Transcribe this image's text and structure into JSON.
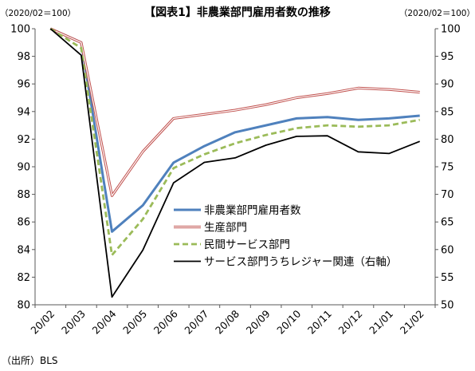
{
  "chart_data": {
    "type": "line",
    "title": "【図表1】非農業部門雇用者数の推移",
    "left_axis_unit": "（2020/02＝100）",
    "right_axis_unit": "（2020/02＝100）",
    "source": "（出所）BLS",
    "categories": [
      "20/02",
      "20/03",
      "20/04",
      "20/05",
      "20/06",
      "20/07",
      "20/08",
      "20/09",
      "20/10",
      "20/11",
      "20/12",
      "21/01",
      "21/02"
    ],
    "left_axis": {
      "min": 80,
      "max": 100,
      "ticks": [
        "80",
        "82",
        "84",
        "86",
        "88",
        "90",
        "92",
        "94",
        "96",
        "98",
        "100"
      ]
    },
    "right_axis": {
      "min": 50,
      "max": 100,
      "ticks": [
        "50",
        "55",
        "60",
        "65",
        "70",
        "75",
        "80",
        "85",
        "90",
        "95",
        "100"
      ]
    },
    "grid": false,
    "legend_position": "center-right",
    "series": [
      {
        "name": "非農業部門雇用者数",
        "axis": "left",
        "color": "#4f81bd",
        "style": "solid-thick",
        "values": [
          100,
          99.0,
          85.3,
          87.2,
          90.3,
          91.5,
          92.5,
          93.0,
          93.5,
          93.6,
          93.4,
          93.5,
          93.7
        ]
      },
      {
        "name": "生産部門",
        "axis": "left",
        "color": "#c0504d",
        "style": "double",
        "values": [
          100,
          99.0,
          87.9,
          91.1,
          93.5,
          93.8,
          94.1,
          94.5,
          95.0,
          95.3,
          95.7,
          95.6,
          95.4
        ]
      },
      {
        "name": "民間サービス部門",
        "axis": "left",
        "color": "#9bbb59",
        "style": "dashed",
        "values": [
          100,
          98.6,
          83.6,
          86.2,
          89.9,
          90.9,
          91.7,
          92.3,
          92.8,
          93.0,
          92.9,
          93.0,
          93.4
        ]
      },
      {
        "name": "サービス部門うちレジャー関連（右軸）",
        "axis": "right",
        "color": "#000000",
        "style": "solid",
        "values": [
          100,
          95.2,
          51.4,
          59.9,
          72.1,
          75.8,
          76.6,
          78.9,
          80.5,
          80.6,
          77.7,
          77.4,
          79.6
        ]
      }
    ]
  }
}
